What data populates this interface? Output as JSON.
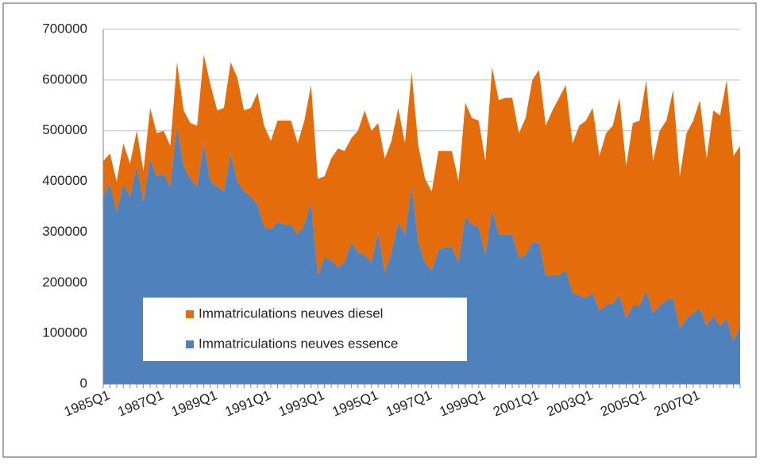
{
  "chart_data": {
    "type": "stacked-area",
    "categories": [
      "1985Q1",
      null,
      null,
      null,
      null,
      null,
      null,
      null,
      "1987Q1",
      null,
      null,
      null,
      null,
      null,
      null,
      null,
      "1989Q1",
      null,
      null,
      null,
      null,
      null,
      null,
      null,
      "1991Q1",
      null,
      null,
      null,
      null,
      null,
      null,
      null,
      "1993Q1",
      null,
      null,
      null,
      null,
      null,
      null,
      null,
      "1995Q1",
      null,
      null,
      null,
      null,
      null,
      null,
      null,
      "1997Q1",
      null,
      null,
      null,
      null,
      null,
      null,
      null,
      "1999Q1",
      null,
      null,
      null,
      null,
      null,
      null,
      null,
      "2001Q1",
      null,
      null,
      null,
      null,
      null,
      null,
      null,
      "2003Q1",
      null,
      null,
      null,
      null,
      null,
      null,
      null,
      "2005Q1",
      null,
      null,
      null,
      null,
      null,
      null,
      null,
      "2007Q1",
      null,
      null,
      null,
      null,
      null,
      null,
      null
    ],
    "series": [
      {
        "name": "Immatriculations neuves essence",
        "color": "#4f81bd",
        "values": [
          370000,
          395000,
          340000,
          395000,
          370000,
          430000,
          360000,
          445000,
          410000,
          415000,
          390000,
          510000,
          430000,
          405000,
          390000,
          475000,
          400000,
          390000,
          380000,
          455000,
          400000,
          380000,
          370000,
          355000,
          310000,
          305000,
          320000,
          315000,
          315000,
          295000,
          315000,
          360000,
          215000,
          250000,
          245000,
          230000,
          240000,
          280000,
          260000,
          255000,
          240000,
          300000,
          220000,
          260000,
          320000,
          295000,
          390000,
          280000,
          240000,
          225000,
          265000,
          270000,
          270000,
          240000,
          330000,
          315000,
          310000,
          255000,
          345000,
          295000,
          295000,
          295000,
          250000,
          255000,
          280000,
          280000,
          215000,
          215000,
          215000,
          225000,
          180000,
          175000,
          170000,
          180000,
          145000,
          155000,
          160000,
          175000,
          130000,
          155000,
          155000,
          185000,
          140000,
          155000,
          165000,
          170000,
          110000,
          130000,
          140000,
          150000,
          115000,
          135000,
          115000,
          130000,
          85000,
          115000
        ]
      },
      {
        "name": "Immatriculations neuves diesel",
        "color": "#e46c0a",
        "values": [
          70000,
          60000,
          60000,
          80000,
          65000,
          70000,
          60000,
          100000,
          85000,
          85000,
          80000,
          125000,
          110000,
          110000,
          120000,
          175000,
          190000,
          150000,
          165000,
          180000,
          205000,
          160000,
          175000,
          220000,
          200000,
          175000,
          200000,
          205000,
          205000,
          180000,
          205000,
          230000,
          190000,
          160000,
          200000,
          235000,
          220000,
          205000,
          240000,
          285000,
          260000,
          215000,
          225000,
          220000,
          225000,
          180000,
          225000,
          190000,
          165000,
          155000,
          195000,
          190000,
          190000,
          160000,
          225000,
          210000,
          210000,
          185000,
          280000,
          265000,
          270000,
          270000,
          245000,
          270000,
          320000,
          340000,
          295000,
          325000,
          350000,
          365000,
          295000,
          335000,
          350000,
          365000,
          305000,
          340000,
          350000,
          390000,
          300000,
          360000,
          365000,
          415000,
          300000,
          345000,
          355000,
          410000,
          300000,
          365000,
          380000,
          410000,
          330000,
          405000,
          415000,
          470000,
          365000,
          355000
        ]
      }
    ],
    "ylim": [
      0,
      700000
    ],
    "yticks": [
      0,
      100000,
      200000,
      300000,
      400000,
      500000,
      600000,
      700000
    ],
    "grid": true
  }
}
